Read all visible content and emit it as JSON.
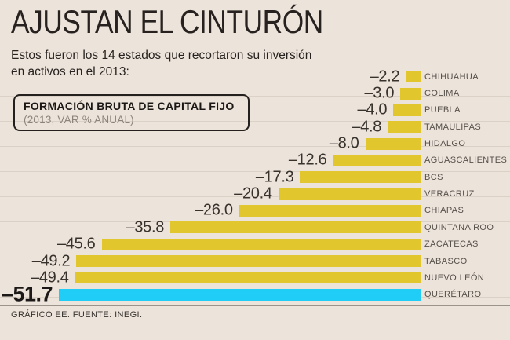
{
  "title": "AJUSTAN EL CINTURÓN",
  "subtitle": {
    "line1": "Estos fueron los 14 estados que recortaron su inversión",
    "line2": "en activos en el 2013:"
  },
  "legend": {
    "title": "FORMACIÓN BRUTA DE CAPITAL FIJO",
    "subtitle": "(2013, VAR % ANUAL)"
  },
  "source": "GRÁFICO EE. FUENTE: INEGI.",
  "colors": {
    "background": "#ECE3DB",
    "bar": "#E2C62D",
    "highlight": "#1FCDF6",
    "ink": "#27221F",
    "gray": "#8C847C",
    "state_label": "#56504A",
    "ruling": "#DCD1C7",
    "separator": "#9A948D"
  },
  "chart_data": {
    "type": "bar",
    "orientation": "horizontal",
    "title": "FORMACIÓN BRUTA DE CAPITAL FIJO",
    "subtitle": "(2013, VAR % ANUAL)",
    "categories": [
      "CHIHUAHUA",
      "COLIMA",
      "PUEBLA",
      "TAMAULIPAS",
      "HIDALGO",
      "AGUASCALIENTES",
      "BCS",
      "VERACRUZ",
      "CHIAPAS",
      "QUINTANA ROO",
      "ZACATECAS",
      "TABASCO",
      "NUEVO LEÓN",
      "QUERÉTARO"
    ],
    "values": [
      -2.2,
      -3.0,
      -4.0,
      -4.8,
      -8.0,
      -12.6,
      -17.3,
      -20.4,
      -26.0,
      -35.8,
      -45.6,
      -49.2,
      -49.4,
      -51.7
    ],
    "value_labels": [
      "–2.2",
      "–3.0",
      "–4.0",
      "–4.8",
      "–8.0",
      "–12.6",
      "–17.3",
      "–20.4",
      "–26.0",
      "–35.8",
      "–45.6",
      "–49.2",
      "–49.4",
      "–51.7"
    ],
    "highlight_index": 13,
    "xlim": [
      -55,
      0
    ],
    "grid": "background-ruling-horizontal",
    "legend_position": "top-left-box",
    "bars_aligned": "right"
  }
}
